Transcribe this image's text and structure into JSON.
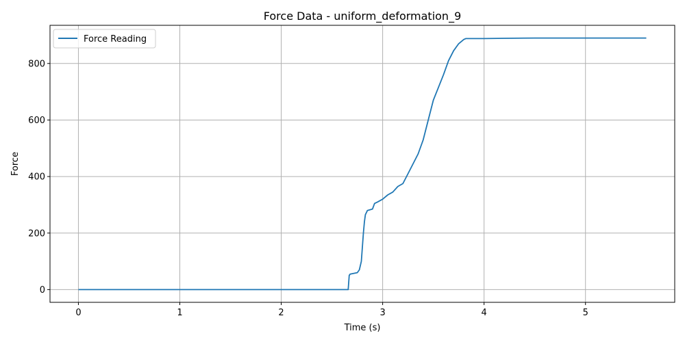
{
  "chart_data": {
    "type": "line",
    "title": "Force Data - uniform_deformation_9",
    "xlabel": "Time (s)",
    "ylabel": "Force",
    "xlim": [
      -0.28,
      5.88
    ],
    "ylim": [
      -45,
      935
    ],
    "xticks": [
      0,
      1,
      2,
      3,
      4,
      5
    ],
    "yticks": [
      0,
      200,
      400,
      600,
      800
    ],
    "grid": true,
    "legend_placement": "top-left",
    "colors": {
      "series": "#1f77b4"
    },
    "series": [
      {
        "name": "Force Reading",
        "x": [
          0,
          0.5,
          1.0,
          1.5,
          2.0,
          2.4,
          2.6,
          2.66,
          2.67,
          2.68,
          2.75,
          2.77,
          2.79,
          2.8,
          2.81,
          2.82,
          2.83,
          2.85,
          2.9,
          2.92,
          2.95,
          3.0,
          3.05,
          3.1,
          3.15,
          3.2,
          3.25,
          3.3,
          3.35,
          3.4,
          3.45,
          3.5,
          3.55,
          3.6,
          3.65,
          3.7,
          3.75,
          3.8,
          3.82,
          3.85,
          4.0,
          4.2,
          4.5,
          5.0,
          5.3,
          5.6
        ],
        "y": [
          0,
          0,
          0,
          0,
          0,
          0,
          0,
          0,
          50,
          55,
          60,
          70,
          100,
          150,
          200,
          240,
          265,
          280,
          285,
          305,
          310,
          320,
          335,
          345,
          365,
          375,
          410,
          445,
          480,
          530,
          600,
          670,
          715,
          760,
          810,
          845,
          870,
          885,
          888,
          888,
          888,
          889,
          890,
          890,
          890,
          890
        ]
      }
    ]
  }
}
